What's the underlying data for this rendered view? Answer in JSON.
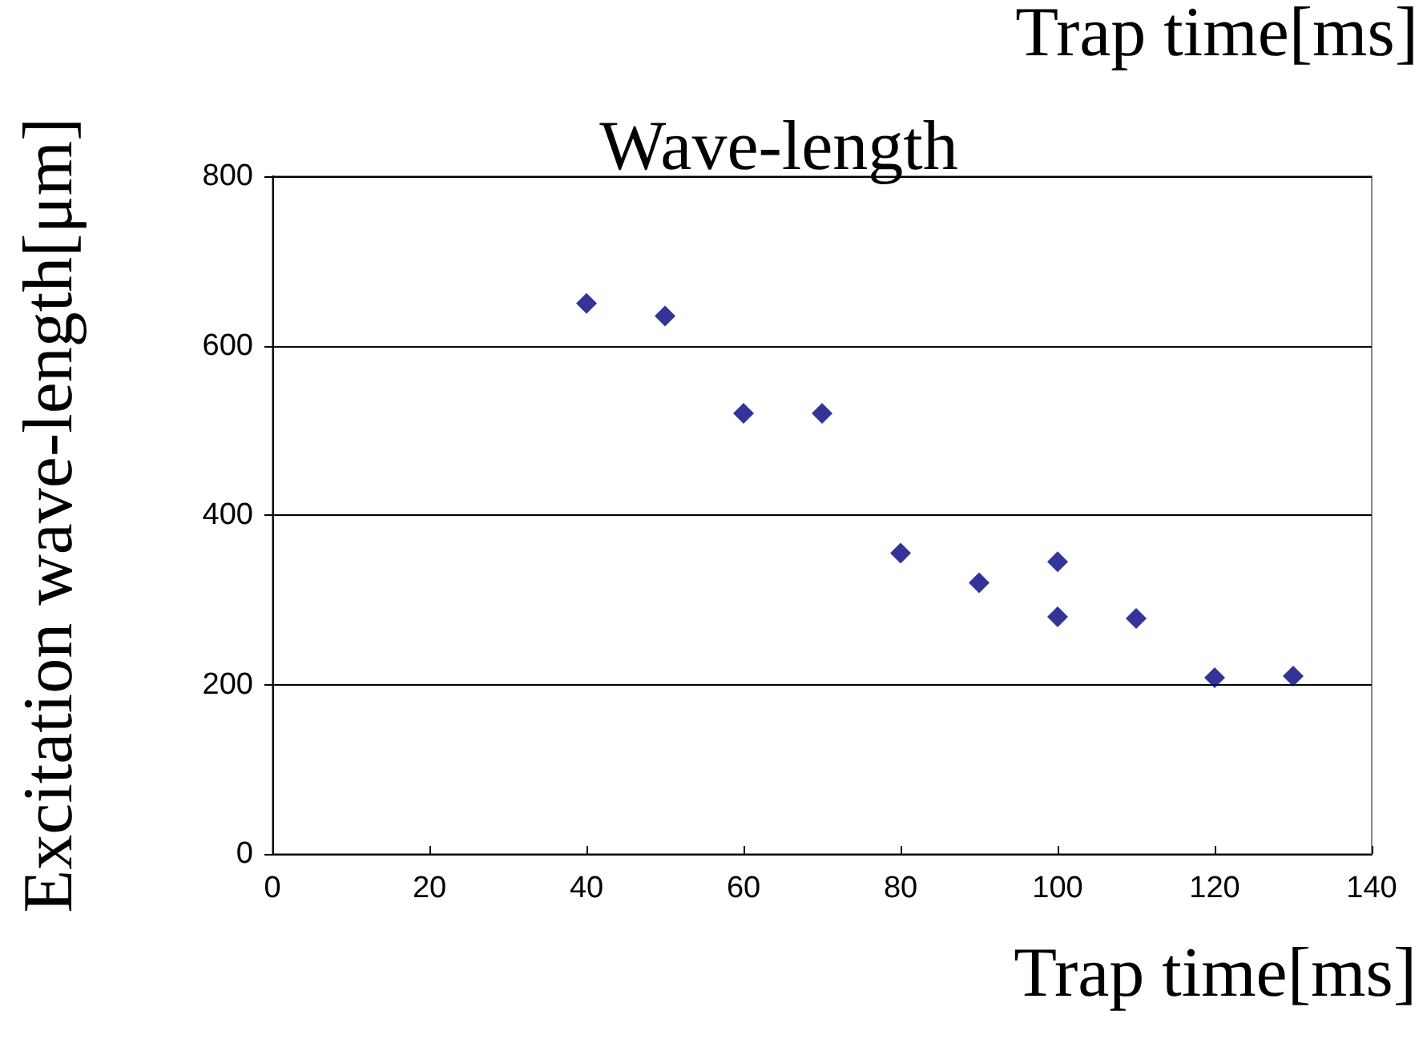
{
  "chart_data": {
    "type": "scatter",
    "title": "Wave-length",
    "xlabel": "Trap time[ms]",
    "ylabel": "Excitation wave-length[μm]",
    "annotations": [
      "Trap time[ms]"
    ],
    "x": [
      40,
      50,
      60,
      70,
      80,
      90,
      100,
      100,
      110,
      120,
      130
    ],
    "series": [
      {
        "color": "#000080",
        "values": [
          650,
          635,
          520,
          520,
          355,
          320,
          345,
          280,
          278,
          208,
          210
        ]
      }
    ],
    "xlim": [
      0,
      140
    ],
    "xticks": [
      0,
      20,
      40,
      60,
      80,
      100,
      120,
      140
    ],
    "ylim": [
      0,
      800
    ],
    "yticks": [
      0,
      200,
      400,
      600,
      800
    ],
    "grid": "y",
    "marker": "diamond"
  }
}
